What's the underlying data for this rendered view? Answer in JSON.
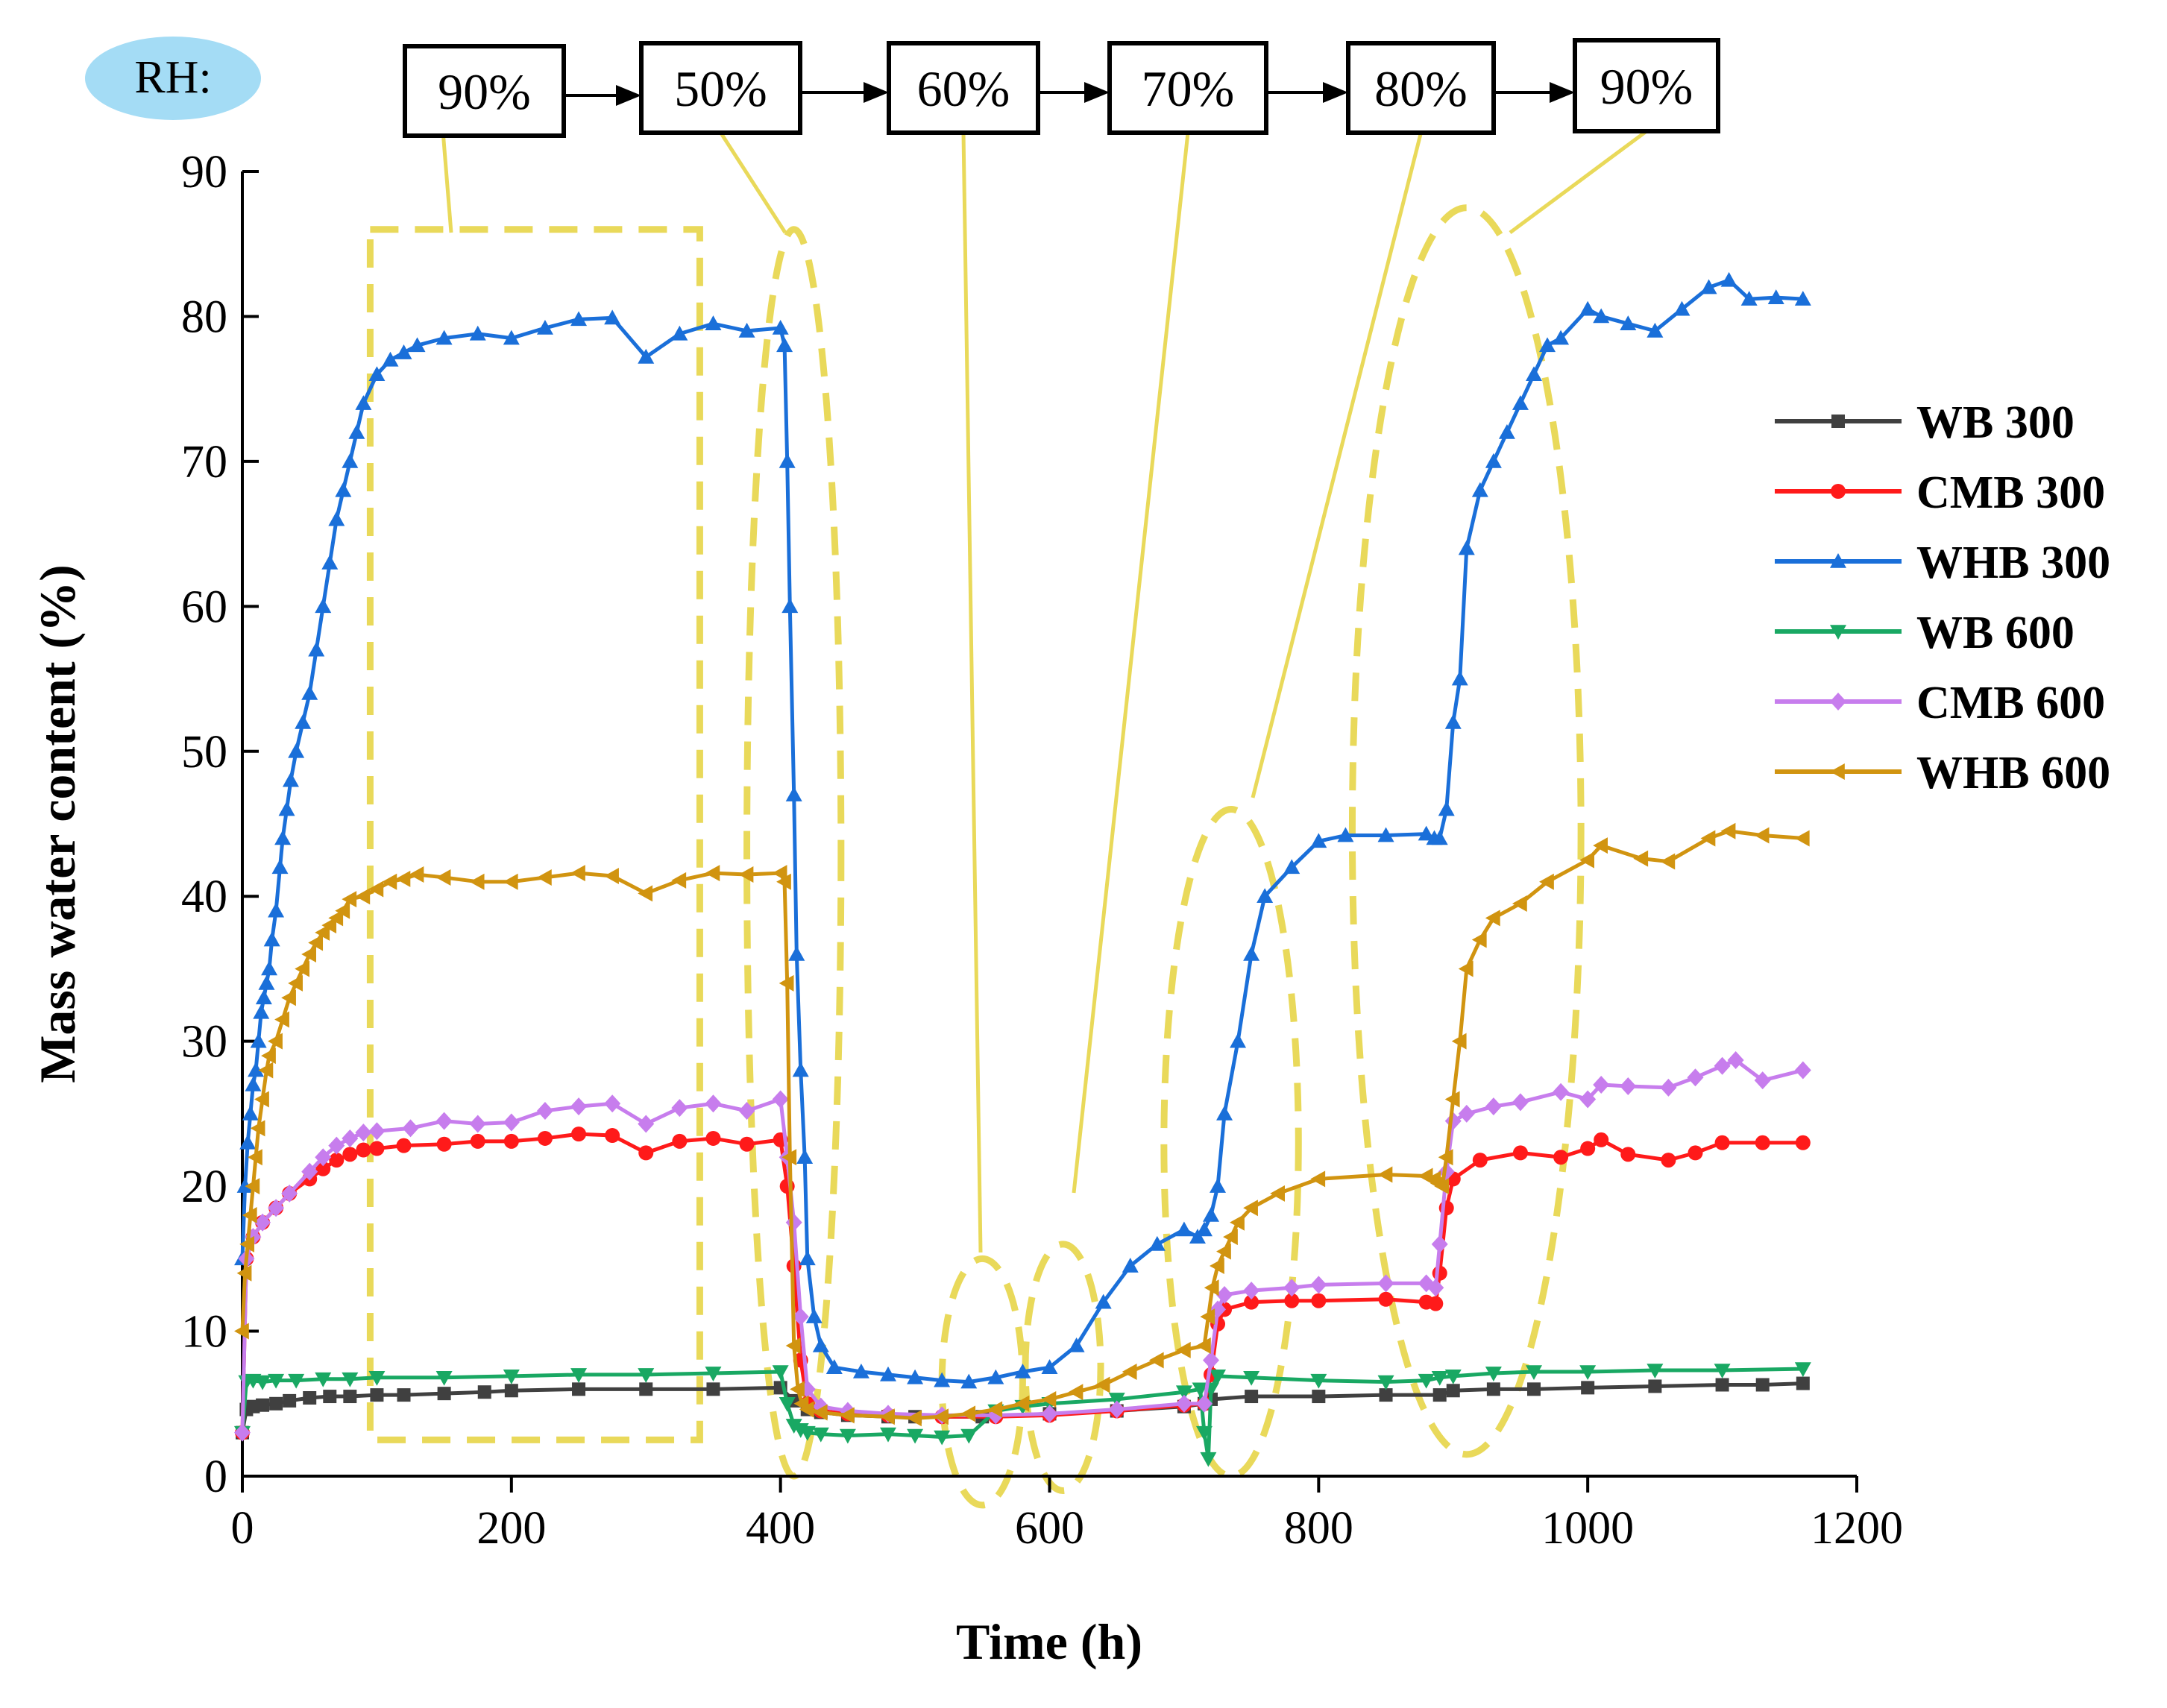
{
  "chart_data": {
    "type": "line",
    "title": "",
    "xlabel": "Time (h)",
    "ylabel": "Mass water content (%)",
    "xlim": [
      0,
      1200
    ],
    "ylim": [
      0,
      90
    ],
    "xticks": [
      0,
      200,
      400,
      600,
      800,
      1000,
      1200
    ],
    "yticks": [
      0,
      10,
      20,
      30,
      40,
      50,
      60,
      70,
      80,
      90
    ],
    "grid": false,
    "legend_position": "right",
    "rh_sequence": {
      "label": "RH:",
      "steps": [
        {
          "label": "90%",
          "points_at_x": 250
        },
        {
          "label": "50%",
          "points_at_x": 410
        },
        {
          "label": "60%",
          "points_at_x": 550
        },
        {
          "label": "70%",
          "points_at_x": 620
        },
        {
          "label": "80%",
          "points_at_x": 740
        },
        {
          "label": "90%",
          "points_at_x": 940
        }
      ]
    },
    "highlight_regions": [
      {
        "shape": "rect",
        "x": [
          95,
          340
        ],
        "y": [
          2.5,
          86
        ]
      },
      {
        "shape": "ellipse",
        "cx": 410,
        "cy": 43,
        "rx": 35,
        "ry": 43
      },
      {
        "shape": "ellipse",
        "cx": 550,
        "cy": 6.5,
        "rx": 30,
        "ry": 8.5
      },
      {
        "shape": "ellipse",
        "cx": 610,
        "cy": 7.5,
        "rx": 28,
        "ry": 8.5
      },
      {
        "shape": "ellipse",
        "cx": 735,
        "cy": 23,
        "rx": 50,
        "ry": 23
      },
      {
        "shape": "ellipse",
        "cx": 910,
        "cy": 44.5,
        "rx": 85,
        "ry": 43
      }
    ],
    "series": [
      {
        "name": "WB 300",
        "color": "#404040",
        "marker": "square",
        "x": [
          0,
          3,
          8,
          15,
          25,
          35,
          50,
          65,
          80,
          100,
          120,
          150,
          180,
          200,
          250,
          300,
          350,
          400,
          410,
          420,
          430,
          450,
          480,
          500,
          550,
          600,
          650,
          700,
          715,
          720,
          750,
          800,
          850,
          890,
          900,
          930,
          960,
          1000,
          1050,
          1100,
          1130,
          1160
        ],
        "values": [
          3,
          4.6,
          4.8,
          4.9,
          5.0,
          5.2,
          5.4,
          5.5,
          5.5,
          5.6,
          5.6,
          5.7,
          5.8,
          5.9,
          6.0,
          6.0,
          6.0,
          6.1,
          5.2,
          4.6,
          4.4,
          4.2,
          4.1,
          4.1,
          4.1,
          4.3,
          4.5,
          4.8,
          5.0,
          5.3,
          5.5,
          5.5,
          5.6,
          5.6,
          5.9,
          6.0,
          6.0,
          6.1,
          6.2,
          6.3,
          6.3,
          6.4
        ]
      },
      {
        "name": "CMB 300",
        "color": "#ff1a1a",
        "marker": "circle",
        "x": [
          0,
          3,
          8,
          15,
          25,
          35,
          50,
          60,
          70,
          80,
          90,
          100,
          120,
          150,
          175,
          200,
          225,
          250,
          275,
          300,
          325,
          350,
          375,
          400,
          405,
          410,
          415,
          420,
          430,
          450,
          480,
          520,
          560,
          600,
          650,
          700,
          715,
          720,
          725,
          730,
          750,
          780,
          800,
          850,
          880,
          887,
          890,
          895,
          900,
          920,
          950,
          980,
          1000,
          1010,
          1030,
          1060,
          1080,
          1100,
          1130,
          1160
        ],
        "values": [
          3,
          15,
          16.5,
          17.5,
          18.5,
          19.5,
          20.5,
          21.2,
          21.8,
          22.2,
          22.5,
          22.6,
          22.8,
          22.9,
          23.1,
          23.1,
          23.3,
          23.6,
          23.5,
          22.3,
          23.1,
          23.3,
          22.9,
          23.2,
          20,
          14.5,
          8,
          5,
          4.5,
          4.3,
          4.2,
          4.1,
          4.1,
          4.2,
          4.5,
          4.9,
          5.0,
          7,
          10.5,
          11.5,
          12.0,
          12.1,
          12.1,
          12.2,
          12.0,
          11.9,
          14,
          18.5,
          20.5,
          21.8,
          22.3,
          22.0,
          22.6,
          23.2,
          22.2,
          21.8,
          22.3,
          23.0,
          23.0,
          23.0
        ]
      },
      {
        "name": "WHB 300",
        "color": "#1a6fd9",
        "marker": "triangle-up",
        "x": [
          0,
          2,
          4,
          6,
          8,
          10,
          12,
          14,
          16,
          18,
          20,
          22,
          25,
          28,
          30,
          33,
          36,
          40,
          45,
          50,
          55,
          60,
          65,
          70,
          75,
          80,
          85,
          90,
          100,
          110,
          120,
          130,
          150,
          175,
          200,
          225,
          250,
          275,
          300,
          325,
          350,
          375,
          400,
          403,
          405,
          407,
          410,
          412,
          415,
          418,
          420,
          425,
          430,
          440,
          460,
          480,
          500,
          520,
          540,
          560,
          580,
          600,
          620,
          640,
          660,
          680,
          700,
          710,
          715,
          720,
          725,
          730,
          740,
          750,
          760,
          780,
          800,
          820,
          850,
          880,
          886,
          890,
          895,
          900,
          905,
          910,
          920,
          930,
          940,
          950,
          960,
          970,
          980,
          1000,
          1010,
          1030,
          1050,
          1070,
          1090,
          1105,
          1120,
          1140,
          1160
        ],
        "values": [
          15,
          20,
          23,
          25,
          27,
          28,
          30,
          32,
          33,
          34,
          35,
          37,
          39,
          42,
          44,
          46,
          48,
          50,
          52,
          54,
          57,
          60,
          63,
          66,
          68,
          70,
          72,
          74,
          76,
          77,
          77.5,
          78,
          78.5,
          78.8,
          78.5,
          79.2,
          79.8,
          79.9,
          77.2,
          78.8,
          79.5,
          79.0,
          79.2,
          78,
          70,
          60,
          47,
          36,
          28,
          22,
          15,
          11,
          9,
          7.5,
          7.2,
          7.0,
          6.8,
          6.6,
          6.5,
          6.8,
          7.2,
          7.5,
          9,
          12,
          14.5,
          16,
          17,
          16.5,
          17,
          18,
          20,
          25,
          30,
          36,
          40,
          42,
          43.8,
          44.2,
          44.2,
          44.3,
          44.0,
          44.0,
          46,
          52,
          55,
          64,
          68,
          70,
          72,
          74,
          76,
          78,
          78.5,
          80.5,
          80,
          79.5,
          79,
          80.5,
          82,
          82.5,
          81.2,
          81.3,
          81.2
        ]
      },
      {
        "name": "WB 600",
        "color": "#19a863",
        "marker": "triangle-down",
        "x": [
          0,
          3,
          8,
          15,
          25,
          40,
          60,
          80,
          100,
          150,
          200,
          250,
          300,
          350,
          400,
          405,
          410,
          415,
          420,
          430,
          450,
          480,
          500,
          520,
          540,
          560,
          580,
          600,
          650,
          700,
          712,
          715,
          718,
          720,
          725,
          750,
          800,
          850,
          880,
          890,
          900,
          930,
          960,
          1000,
          1050,
          1100,
          1160
        ],
        "values": [
          3,
          6.5,
          6.6,
          6.5,
          6.6,
          6.6,
          6.7,
          6.7,
          6.8,
          6.8,
          6.9,
          7.0,
          7.0,
          7.1,
          7.2,
          5,
          3.5,
          3.2,
          3.0,
          2.9,
          2.8,
          2.9,
          2.8,
          2.7,
          2.8,
          4.5,
          4.8,
          5.0,
          5.3,
          5.8,
          6.0,
          3,
          1.2,
          6,
          6.9,
          6.8,
          6.6,
          6.5,
          6.6,
          6.8,
          6.9,
          7.1,
          7.2,
          7.2,
          7.3,
          7.3,
          7.4
        ]
      },
      {
        "name": "CMB 600",
        "color": "#c77ded",
        "marker": "diamond",
        "x": [
          0,
          3,
          8,
          15,
          25,
          35,
          50,
          60,
          70,
          80,
          90,
          100,
          125,
          150,
          175,
          200,
          225,
          250,
          275,
          300,
          325,
          350,
          375,
          400,
          405,
          410,
          415,
          420,
          430,
          450,
          480,
          520,
          560,
          600,
          650,
          700,
          715,
          720,
          725,
          730,
          750,
          780,
          800,
          850,
          880,
          887,
          890,
          895,
          900,
          910,
          930,
          950,
          980,
          1000,
          1010,
          1030,
          1060,
          1080,
          1100,
          1110,
          1130,
          1160
        ],
        "values": [
          3,
          15,
          16.5,
          17.5,
          18.5,
          19.5,
          21,
          22,
          22.8,
          23.3,
          23.7,
          23.8,
          24,
          24.5,
          24.3,
          24.4,
          25.2,
          25.5,
          25.7,
          24.3,
          25.4,
          25.7,
          25.2,
          26.0,
          22,
          17.5,
          11,
          6,
          4.8,
          4.5,
          4.3,
          4.2,
          4.2,
          4.3,
          4.6,
          5.0,
          5.0,
          8,
          11.5,
          12.5,
          12.8,
          13.0,
          13.2,
          13.3,
          13.3,
          13.0,
          16,
          21,
          24.5,
          25,
          25.5,
          25.8,
          26.5,
          26.0,
          27,
          26.9,
          26.8,
          27.5,
          28.3,
          28.7,
          27.3,
          28.0
        ]
      },
      {
        "name": "WHB 600",
        "color": "#d19410",
        "marker": "triangle-left",
        "x": [
          0,
          2,
          4,
          6,
          8,
          10,
          12,
          15,
          18,
          20,
          25,
          30,
          35,
          40,
          45,
          50,
          55,
          60,
          65,
          70,
          75,
          80,
          90,
          100,
          110,
          120,
          130,
          150,
          175,
          200,
          225,
          250,
          275,
          300,
          325,
          350,
          375,
          400,
          403,
          405,
          407,
          410,
          413,
          416,
          420,
          430,
          450,
          480,
          500,
          520,
          540,
          560,
          580,
          600,
          620,
          640,
          660,
          680,
          700,
          715,
          718,
          721,
          725,
          730,
          735,
          740,
          750,
          770,
          800,
          850,
          880,
          886,
          889,
          892,
          895,
          900,
          905,
          910,
          920,
          930,
          950,
          970,
          1000,
          1010,
          1040,
          1060,
          1090,
          1105,
          1130,
          1160
        ],
        "values": [
          10,
          14,
          16,
          18,
          20,
          22,
          24,
          26,
          28,
          29,
          30,
          31.5,
          33,
          34,
          35,
          36,
          36.8,
          37.5,
          38,
          38.5,
          39,
          39.8,
          40,
          40.5,
          41,
          41.2,
          41.5,
          41.3,
          41.0,
          41.0,
          41.3,
          41.6,
          41.4,
          40.2,
          41.1,
          41.6,
          41.5,
          41.6,
          41.0,
          34,
          22,
          9,
          6,
          5.0,
          4.6,
          4.4,
          4.2,
          4.1,
          4.0,
          4.1,
          4.3,
          4.6,
          5.0,
          5.3,
          5.8,
          6.3,
          7.2,
          8.0,
          8.7,
          9.0,
          11,
          13,
          14.5,
          15.5,
          16.5,
          17.5,
          18.5,
          19.5,
          20.5,
          20.8,
          20.7,
          20.5,
          20.2,
          20.0,
          22,
          26,
          30,
          35,
          37,
          38.5,
          39.5,
          41,
          42.5,
          43.5,
          42.6,
          42.4,
          44,
          44.5,
          44.2,
          44.0
        ]
      }
    ]
  }
}
